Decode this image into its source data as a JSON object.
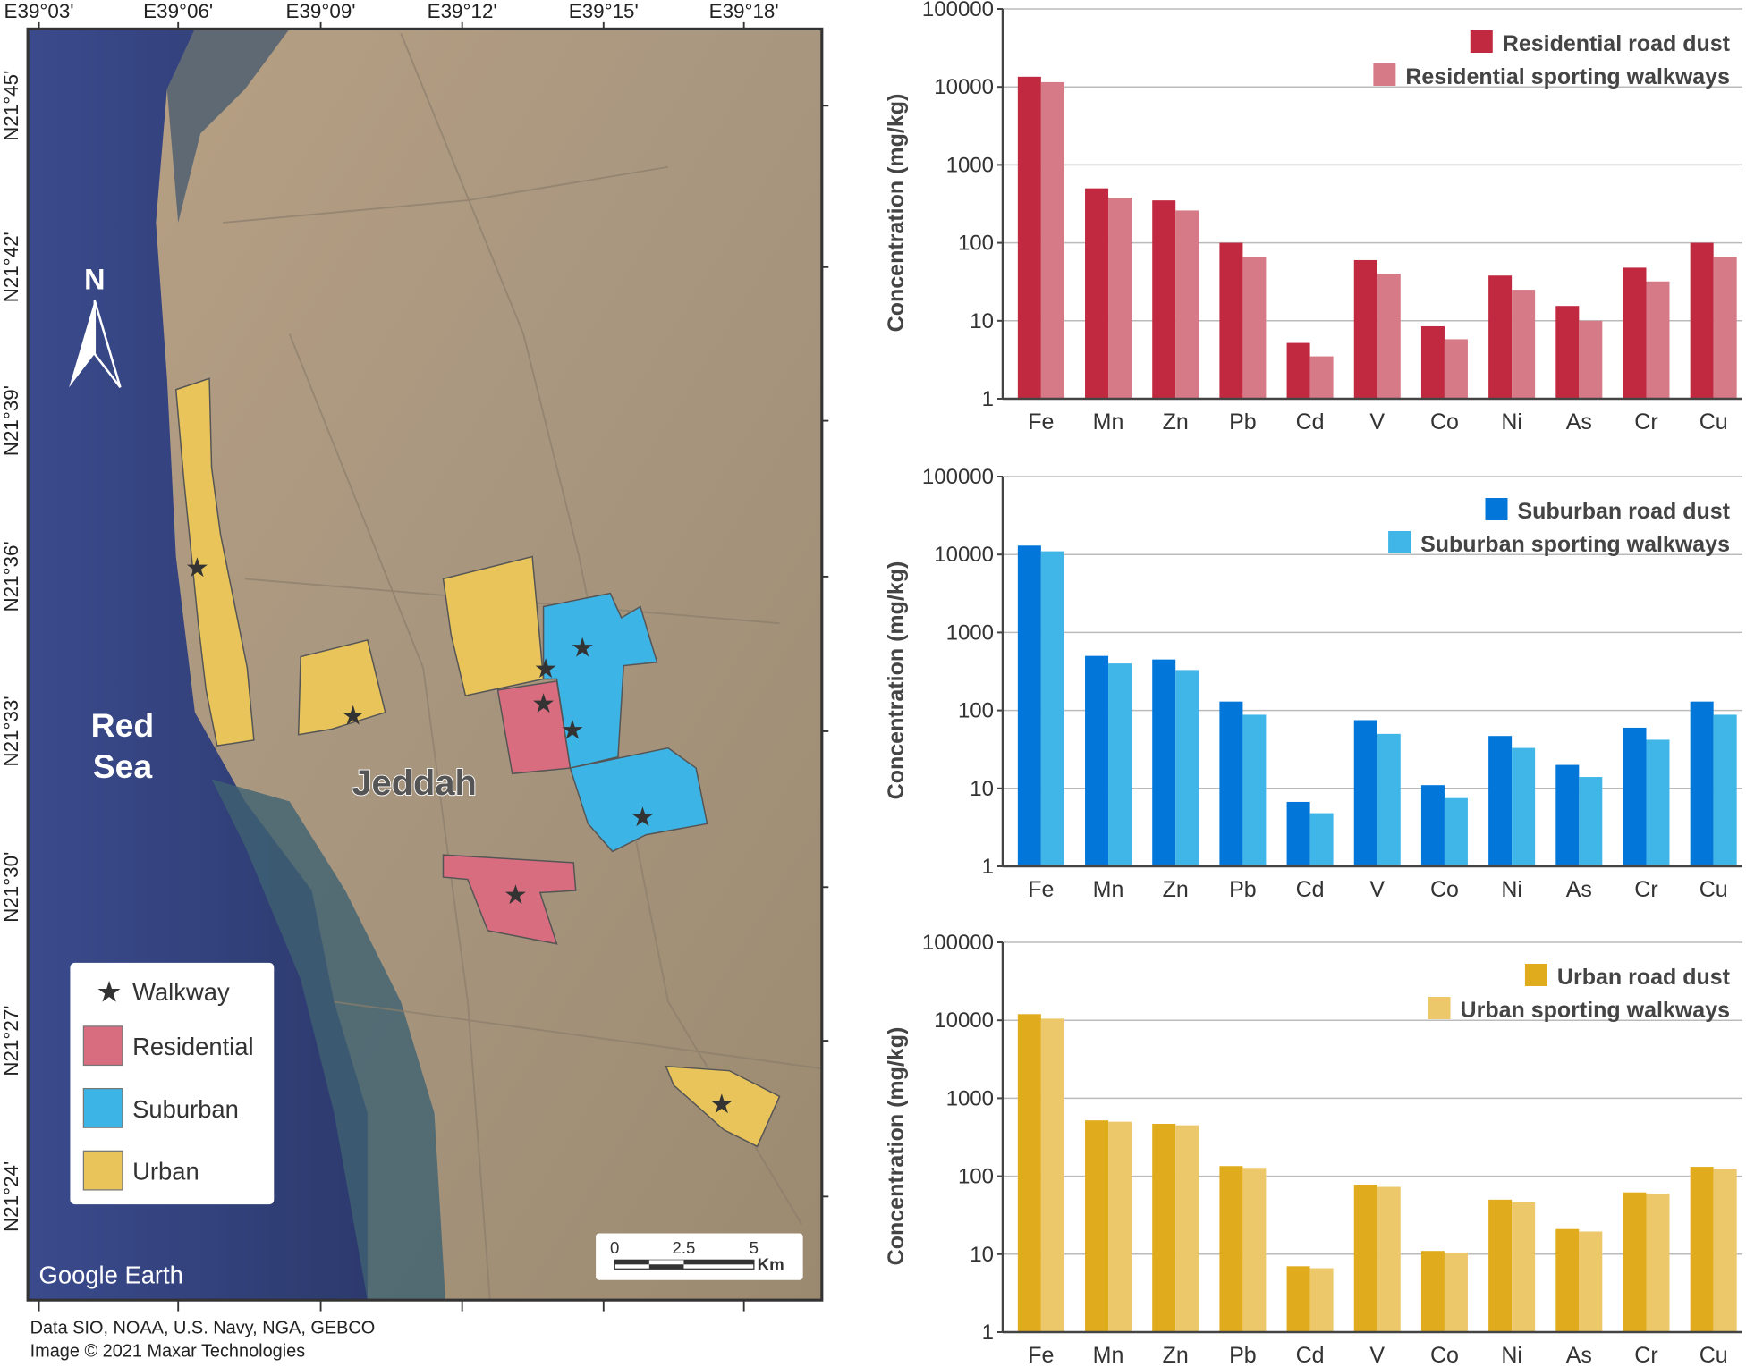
{
  "map": {
    "top_ticks": [
      "E39°03'",
      "E39°06'",
      "E39°09'",
      "E39°12'",
      "E39°15'",
      "E39°18'"
    ],
    "left_ticks": [
      "N21°45'",
      "N21°42'",
      "N21°39'",
      "N21°36'",
      "N21°33'",
      "N21°30'",
      "N21°27'",
      "N21°24'"
    ],
    "sea_label_1": "Red",
    "sea_label_2": "Sea",
    "city_label": "Jeddah",
    "north_label": "N",
    "watermark": "Google Earth",
    "scale": {
      "labels": [
        "0",
        "2.5",
        "5"
      ],
      "unit": "Km"
    },
    "legend": {
      "walkway": "Walkway",
      "residential": "Residential",
      "suburban": "Suburban",
      "urban": "Urban"
    },
    "colors": {
      "residential": "#d86d7f",
      "suburban": "#3cb4e6",
      "urban": "#e8c45a"
    },
    "credit_1": "Data SIO, NOAA, U.S. Navy, NGA, GEBCO",
    "credit_2": "Image © 2021 Maxar Technologies"
  },
  "chart_data": [
    {
      "type": "bar",
      "yscale": "log",
      "ylim": [
        1,
        100000
      ],
      "yticks": [
        "1",
        "10",
        "100",
        "1000",
        "10000",
        "100000"
      ],
      "ylabel": "Concentration (mg/kg)",
      "grid": true,
      "legend": "top-right",
      "categories": [
        "Fe",
        "Mn",
        "Zn",
        "Pb",
        "Cd",
        "V",
        "Co",
        "Ni",
        "As",
        "Cr",
        "Cu"
      ],
      "series": [
        {
          "name": "Residential road dust",
          "color": "#c0293f",
          "values": [
            13500,
            500,
            350,
            100,
            5.2,
            60,
            8.5,
            38,
            15.5,
            48,
            100
          ]
        },
        {
          "name": "Residential sporting walkways",
          "color": "#d67a88",
          "values": [
            11500,
            380,
            260,
            65,
            3.5,
            40,
            5.8,
            25,
            10,
            32,
            66
          ]
        }
      ]
    },
    {
      "type": "bar",
      "yscale": "log",
      "ylim": [
        1,
        100000
      ],
      "yticks": [
        "1",
        "10",
        "100",
        "1000",
        "10000",
        "100000"
      ],
      "ylabel": "Concentration (mg/kg)",
      "grid": true,
      "legend": "top-right",
      "categories": [
        "Fe",
        "Mn",
        "Zn",
        "Pb",
        "Cd",
        "V",
        "Co",
        "Ni",
        "As",
        "Cr",
        "Cu"
      ],
      "series": [
        {
          "name": "Suburban road dust",
          "color": "#0277d9",
          "values": [
            13000,
            500,
            450,
            130,
            6.7,
            75,
            11,
            47,
            20,
            60,
            130
          ]
        },
        {
          "name": "Suburban sporting walkways",
          "color": "#40b6e8",
          "values": [
            11000,
            400,
            330,
            88,
            4.8,
            50,
            7.5,
            33,
            14,
            42,
            88
          ]
        }
      ]
    },
    {
      "type": "bar",
      "yscale": "log",
      "ylim": [
        1,
        100000
      ],
      "yticks": [
        "1",
        "10",
        "100",
        "1000",
        "10000",
        "100000"
      ],
      "ylabel": "Concentration (mg/kg)",
      "grid": true,
      "legend": "top-right",
      "categories": [
        "Fe",
        "Mn",
        "Zn",
        "Pb",
        "Cd",
        "V",
        "Co",
        "Ni",
        "As",
        "Cr",
        "Cu"
      ],
      "series": [
        {
          "name": "Urban road dust",
          "color": "#e0ac1e",
          "values": [
            12000,
            520,
            470,
            135,
            7,
            78,
            11,
            50,
            21,
            62,
            132
          ]
        },
        {
          "name": "Urban sporting walkways",
          "color": "#ecc86a",
          "values": [
            10500,
            500,
            450,
            128,
            6.6,
            73,
            10.5,
            46,
            19.5,
            60,
            125
          ]
        }
      ]
    }
  ]
}
